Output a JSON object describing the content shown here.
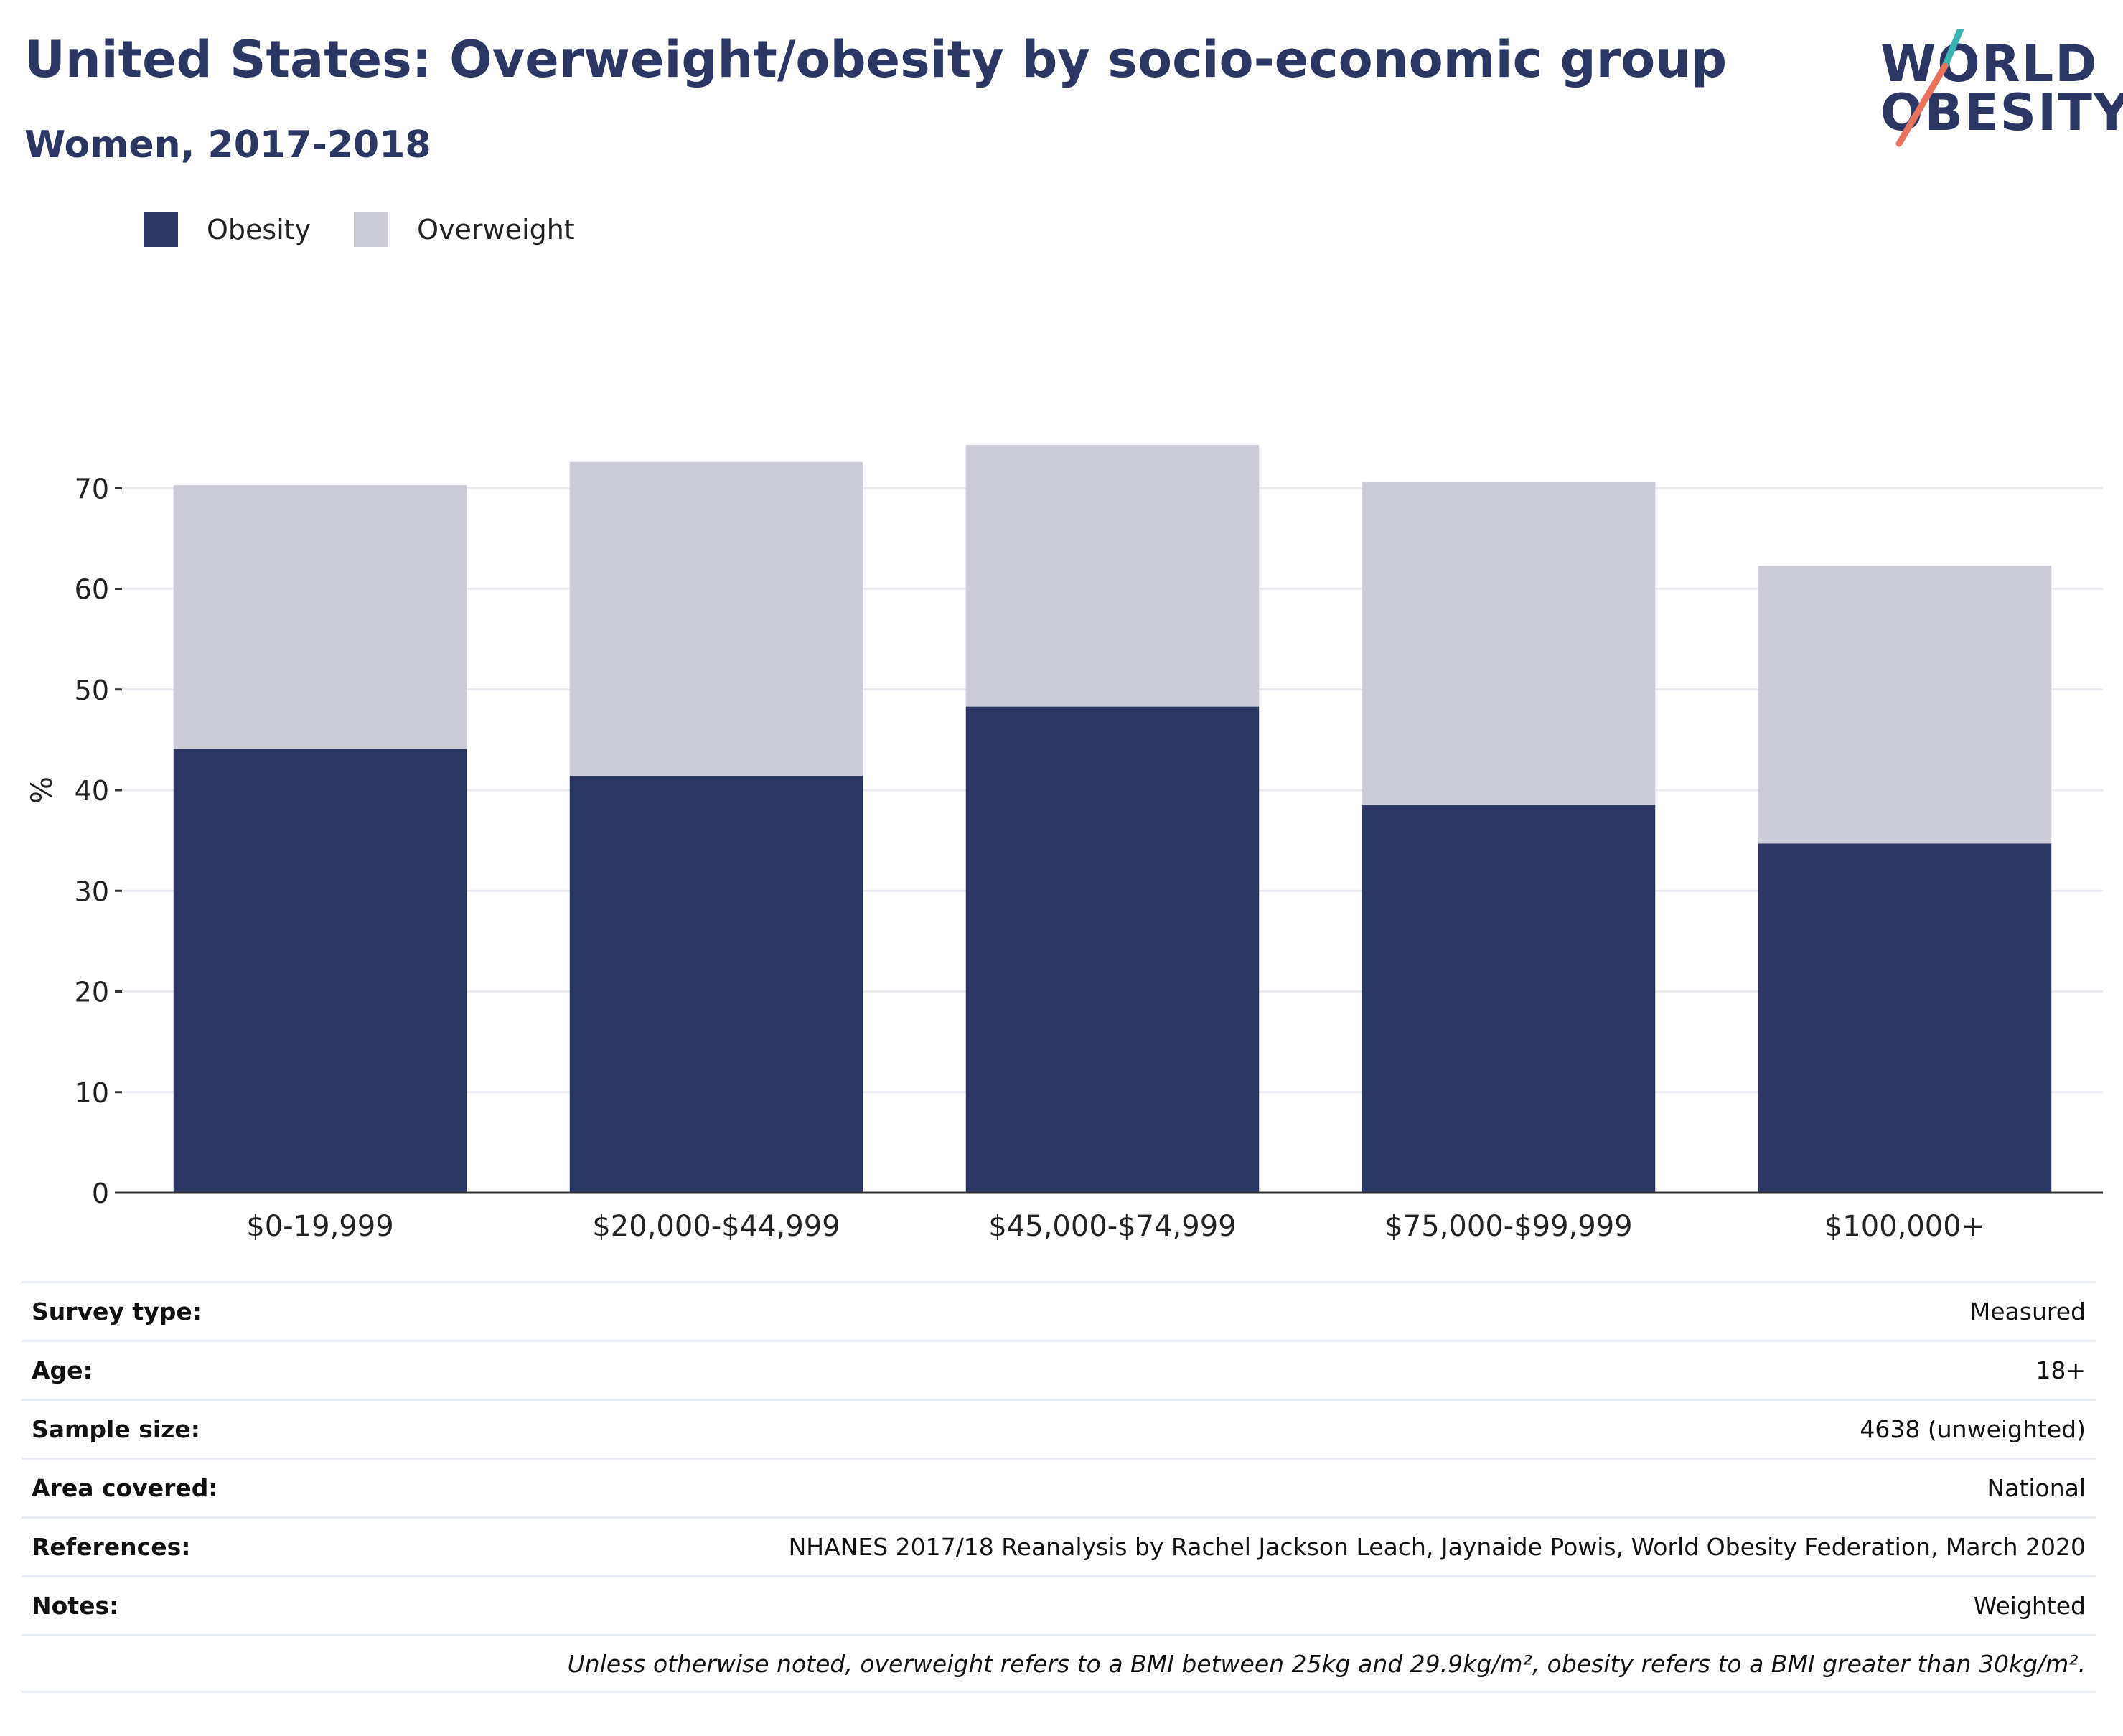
{
  "header": {
    "title": "United States: Overweight/obesity by socio-economic group",
    "subtitle": "Women, 2017-2018"
  },
  "logo": {
    "line1": "WORLD",
    "line2": "OBESITY",
    "accent_teal": "#3bb3b1",
    "accent_coral": "#e8735f"
  },
  "legend": [
    {
      "label": "Obesity",
      "color": "#2b3663"
    },
    {
      "label": "Overweight",
      "color": "#cbccd8"
    }
  ],
  "chart_data": {
    "type": "bar",
    "stacked": true,
    "categories": [
      "$0-19,999",
      "$20,000-$44,999",
      "$45,000-$74,999",
      "$75,000-$99,999",
      "$100,000+"
    ],
    "series": [
      {
        "name": "Obesity",
        "values": [
          44.1,
          41.4,
          48.3,
          38.5,
          34.7
        ],
        "color": "#2b3663"
      },
      {
        "name": "Overweight",
        "values": [
          26.2,
          31.2,
          26.0,
          32.1,
          27.6
        ],
        "color": "#cbccd8"
      }
    ],
    "ylabel": "%",
    "ylim": [
      0,
      80
    ],
    "yticks": [
      0,
      10,
      20,
      30,
      40,
      50,
      60,
      70
    ],
    "grid": true,
    "legend_position": "top-left"
  },
  "info": {
    "rows": [
      {
        "key": "Survey type:",
        "value": "Measured"
      },
      {
        "key": "Age:",
        "value": "18+"
      },
      {
        "key": "Sample size:",
        "value": "4638 (unweighted)"
      },
      {
        "key": "Area covered:",
        "value": "National"
      },
      {
        "key": "References:",
        "value": "NHANES 2017/18 Reanalysis by Rachel Jackson Leach, Jaynaide Powis, World Obesity Federation, March 2020"
      },
      {
        "key": "Notes:",
        "value": "Weighted"
      }
    ],
    "footnote": "Unless otherwise noted, overweight refers to a BMI between 25kg and 29.9kg/m², obesity refers to a BMI greater than 30kg/m²."
  }
}
